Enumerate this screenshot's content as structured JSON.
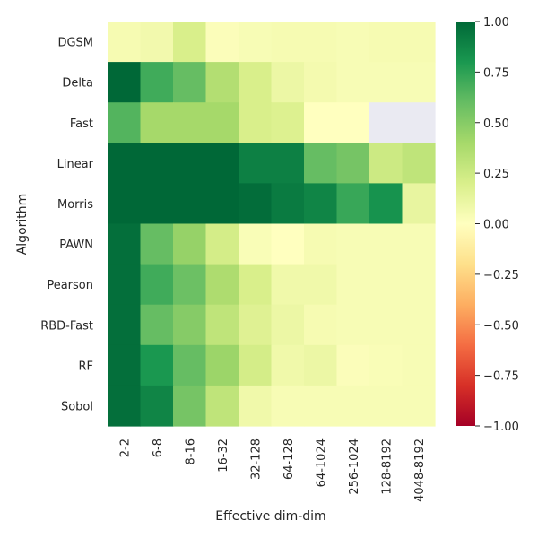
{
  "chart_data": {
    "type": "heatmap",
    "title": "",
    "xlabel": "Effective dim-dim",
    "ylabel": "Algorithm",
    "x_categories": [
      "2-2",
      "6-8",
      "8-16",
      "16-32",
      "32-128",
      "64-128",
      "64-1024",
      "256-1024",
      "128-8192",
      "4048-8192"
    ],
    "y_categories": [
      "DGSM",
      "Delta",
      "Fast",
      "Linear",
      "Morris",
      "PAWN",
      "Pearson",
      "RBD-Fast",
      "RF",
      "Sobol"
    ],
    "values": [
      [
        0.05,
        0.07,
        0.2,
        0.02,
        0.04,
        0.05,
        0.05,
        0.04,
        0.05,
        0.05
      ],
      [
        1.0,
        0.7,
        0.6,
        0.35,
        0.2,
        0.1,
        0.06,
        0.04,
        0.04,
        0.04
      ],
      [
        0.65,
        0.4,
        0.4,
        0.4,
        0.2,
        0.18,
        0.0,
        0.0,
        null,
        null
      ],
      [
        1.0,
        1.0,
        1.0,
        1.0,
        0.9,
        0.9,
        0.6,
        0.55,
        0.25,
        0.3
      ],
      [
        1.0,
        1.0,
        1.0,
        1.0,
        0.98,
        0.92,
        0.88,
        0.72,
        0.82,
        0.12
      ],
      [
        0.97,
        0.6,
        0.45,
        0.22,
        0.03,
        0.0,
        0.05,
        0.04,
        0.04,
        0.04
      ],
      [
        0.97,
        0.7,
        0.58,
        0.37,
        0.2,
        0.08,
        0.08,
        0.04,
        0.04,
        0.04
      ],
      [
        0.97,
        0.6,
        0.5,
        0.3,
        0.17,
        0.1,
        0.05,
        0.04,
        0.04,
        0.04
      ],
      [
        0.97,
        0.8,
        0.6,
        0.43,
        0.22,
        0.08,
        0.1,
        0.02,
        0.03,
        0.04
      ],
      [
        0.97,
        0.88,
        0.55,
        0.3,
        0.08,
        0.04,
        0.04,
        0.04,
        0.04,
        0.04
      ]
    ],
    "vmin": -1.0,
    "vmax": 1.0,
    "colormap": "RdYlGn",
    "missing_color": "#eaeaf2",
    "colorbar_ticks": [
      "1.00",
      "0.75",
      "0.50",
      "0.25",
      "0.00",
      "−0.25",
      "−0.50",
      "−0.75",
      "−1.00"
    ],
    "grid": false,
    "colorbar_placement": "right"
  }
}
